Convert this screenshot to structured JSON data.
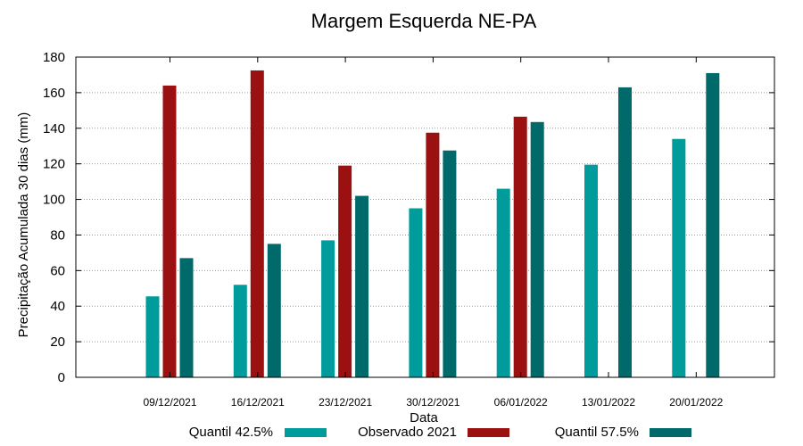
{
  "chart_data": {
    "type": "bar",
    "title": "Margem Esquerda NE-PA",
    "xlabel": "Data",
    "ylabel": "Precipitação Acumulada 30 dias (mm)",
    "ylim": [
      0,
      180
    ],
    "yticks": [
      0,
      20,
      40,
      60,
      80,
      100,
      120,
      140,
      160,
      180
    ],
    "grid": true,
    "legend_position": "bottom",
    "categories": [
      "09/12/2021",
      "16/12/2021",
      "23/12/2021",
      "30/12/2021",
      "06/01/2022",
      "13/01/2022",
      "20/01/2022"
    ],
    "series": [
      {
        "name": "Quantil 42.5%",
        "color": "#009b9b",
        "values": [
          45.5,
          52,
          77,
          95,
          106,
          119.5,
          134
        ]
      },
      {
        "name": "Observado 2021",
        "color": "#9b1111",
        "values": [
          164,
          172.5,
          119,
          137.5,
          146.5,
          null,
          null
        ]
      },
      {
        "name": "Quantil 57.5%",
        "color": "#006a6a",
        "values": [
          67,
          75,
          102,
          127.5,
          143.5,
          163,
          171
        ]
      }
    ]
  }
}
